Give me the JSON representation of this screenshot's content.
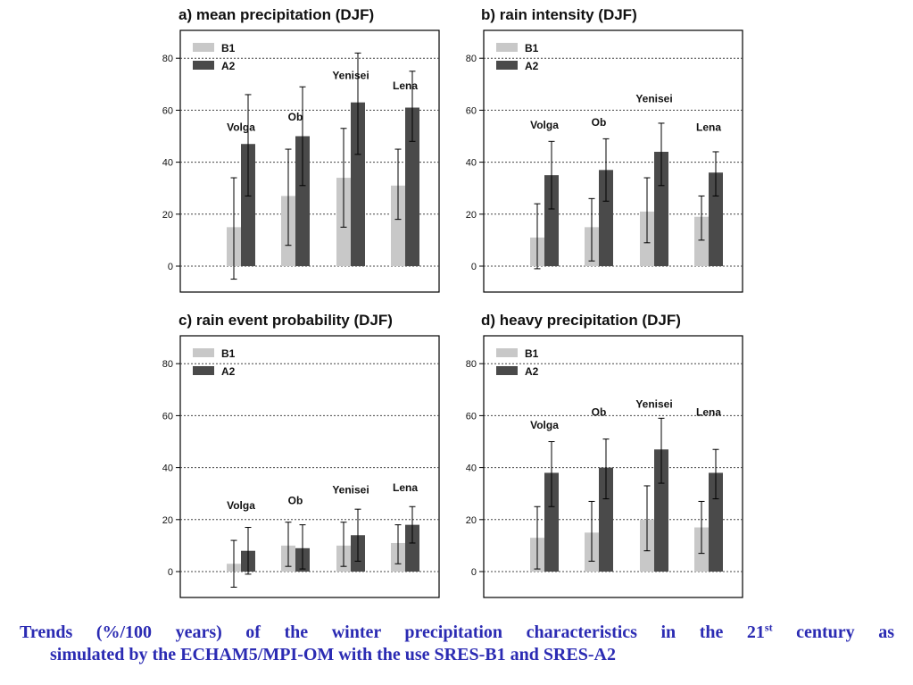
{
  "chart_data": [
    {
      "type": "bar",
      "title": "a) mean precipitation (DJF)",
      "categories": [
        "Volga",
        "Ob",
        "Yenisei",
        "Lena"
      ],
      "series": [
        {
          "name": "B1",
          "values": [
            15,
            27,
            34,
            31
          ],
          "err_low": [
            -5,
            8,
            15,
            18
          ],
          "err_high": [
            34,
            45,
            53,
            45
          ]
        },
        {
          "name": "A2",
          "values": [
            47,
            50,
            63,
            61
          ],
          "err_low": [
            27,
            31,
            43,
            48
          ],
          "err_high": [
            66,
            69,
            82,
            75
          ]
        }
      ],
      "label_y": [
        52,
        56,
        72,
        68
      ],
      "yticks": [
        0,
        20,
        40,
        60,
        80
      ],
      "ylim": [
        -10,
        90
      ],
      "grid": true,
      "legend": "top-left"
    },
    {
      "type": "bar",
      "title": "b) rain intensity (DJF)",
      "categories": [
        "Volga",
        "Ob",
        "Yenisei",
        "Lena"
      ],
      "series": [
        {
          "name": "B1",
          "values": [
            11,
            15,
            21,
            19
          ],
          "err_low": [
            -1,
            2,
            9,
            10
          ],
          "err_high": [
            24,
            26,
            34,
            27
          ]
        },
        {
          "name": "A2",
          "values": [
            35,
            37,
            44,
            36
          ],
          "err_low": [
            22,
            25,
            31,
            27
          ],
          "err_high": [
            48,
            49,
            55,
            44
          ]
        }
      ],
      "label_y": [
        53,
        54,
        63,
        52
      ],
      "yticks": [
        0,
        20,
        40,
        60,
        80
      ],
      "ylim": [
        -10,
        90
      ],
      "grid": true,
      "legend": "top-left"
    },
    {
      "type": "bar",
      "title": "c) rain event probability (DJF)",
      "categories": [
        "Volga",
        "Ob",
        "Yenisei",
        "Lena"
      ],
      "series": [
        {
          "name": "B1",
          "values": [
            3,
            10,
            10,
            11
          ],
          "err_low": [
            -6,
            2,
            2,
            3
          ],
          "err_high": [
            12,
            19,
            19,
            18
          ]
        },
        {
          "name": "A2",
          "values": [
            8,
            9,
            14,
            18
          ],
          "err_low": [
            -1,
            1,
            4,
            11
          ],
          "err_high": [
            17,
            18,
            24,
            25
          ]
        }
      ],
      "label_y": [
        24,
        26,
        30,
        31
      ],
      "yticks": [
        0,
        20,
        40,
        60,
        80
      ],
      "ylim": [
        -10,
        90
      ],
      "grid": true,
      "legend": "top-left"
    },
    {
      "type": "bar",
      "title": "d) heavy precipitation (DJF)",
      "categories": [
        "Volga",
        "Ob",
        "Yenisei",
        "Lena"
      ],
      "series": [
        {
          "name": "B1",
          "values": [
            13,
            15,
            20,
            17
          ],
          "err_low": [
            1,
            4,
            8,
            7
          ],
          "err_high": [
            25,
            27,
            33,
            27
          ]
        },
        {
          "name": "A2",
          "values": [
            38,
            40,
            47,
            38
          ],
          "err_low": [
            25,
            28,
            34,
            28
          ],
          "err_high": [
            50,
            51,
            59,
            47
          ]
        }
      ],
      "label_y": [
        55,
        60,
        63,
        60
      ],
      "yticks": [
        0,
        20,
        40,
        60,
        80
      ],
      "ylim": [
        -10,
        90
      ],
      "grid": true,
      "legend": "top-left"
    }
  ],
  "colors": {
    "B1": "#c8c8c8",
    "A2": "#4a4a4a",
    "caption": "#2b2bb3"
  },
  "caption": {
    "line1_a": "Trends (%/100 years) of the winter precipitation characteristics in the 21",
    "line1_sup": "st",
    "line1_b": " century as",
    "line2": "simulated by the ECHAM5/MPI-OM with the use SRES-B1 and SRES-A2"
  }
}
